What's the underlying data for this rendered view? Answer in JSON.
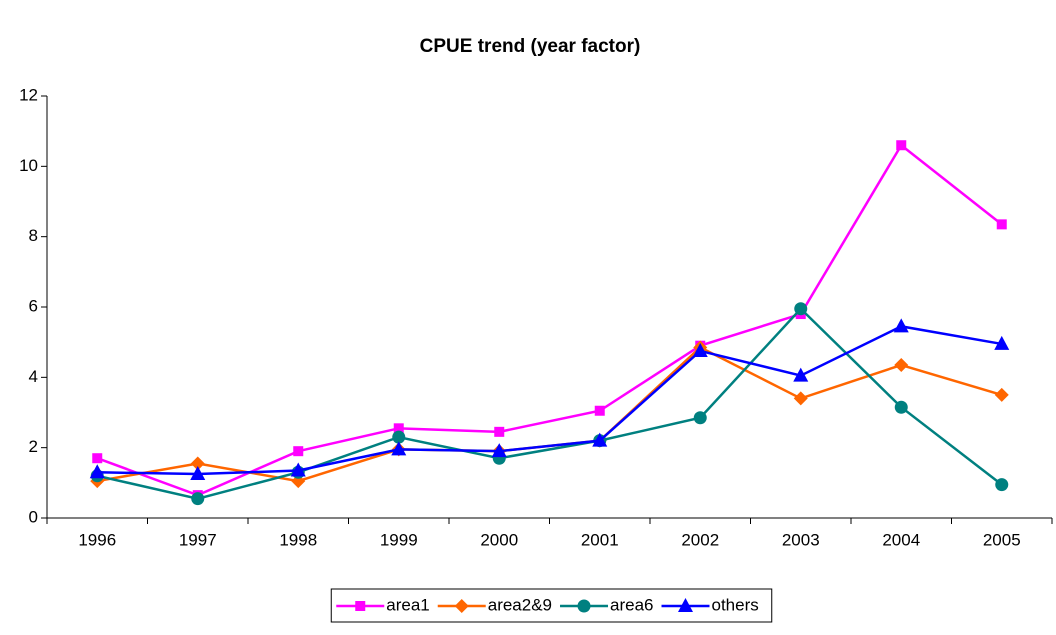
{
  "chart_data": {
    "type": "line",
    "title": "CPUE trend (year factor)",
    "categories": [
      "1996",
      "1997",
      "1998",
      "1999",
      "2000",
      "2001",
      "2002",
      "2003",
      "2004",
      "2005"
    ],
    "series": [
      {
        "name": "area1",
        "color": "#ff00ff",
        "marker": "square",
        "values": [
          1.7,
          0.65,
          1.9,
          2.55,
          2.45,
          3.05,
          4.9,
          5.8,
          10.6,
          8.35
        ]
      },
      {
        "name": "area2&9",
        "color": "#ff6600",
        "marker": "diamond",
        "values": [
          1.05,
          1.55,
          1.05,
          1.95,
          1.9,
          2.2,
          4.85,
          3.4,
          4.35,
          3.5
        ]
      },
      {
        "name": "area6",
        "color": "#008080",
        "marker": "circle",
        "values": [
          1.2,
          0.55,
          1.3,
          2.3,
          1.7,
          2.2,
          2.85,
          5.95,
          3.15,
          0.95
        ]
      },
      {
        "name": "others",
        "color": "#0000ff",
        "marker": "triangle",
        "values": [
          1.3,
          1.25,
          1.35,
          1.95,
          1.9,
          2.2,
          4.75,
          4.05,
          5.45,
          4.95
        ]
      }
    ],
    "ylim": [
      0,
      12
    ],
    "yticks": [
      0,
      2,
      4,
      6,
      8,
      10,
      12
    ],
    "grid": false,
    "legend": "bottom"
  }
}
